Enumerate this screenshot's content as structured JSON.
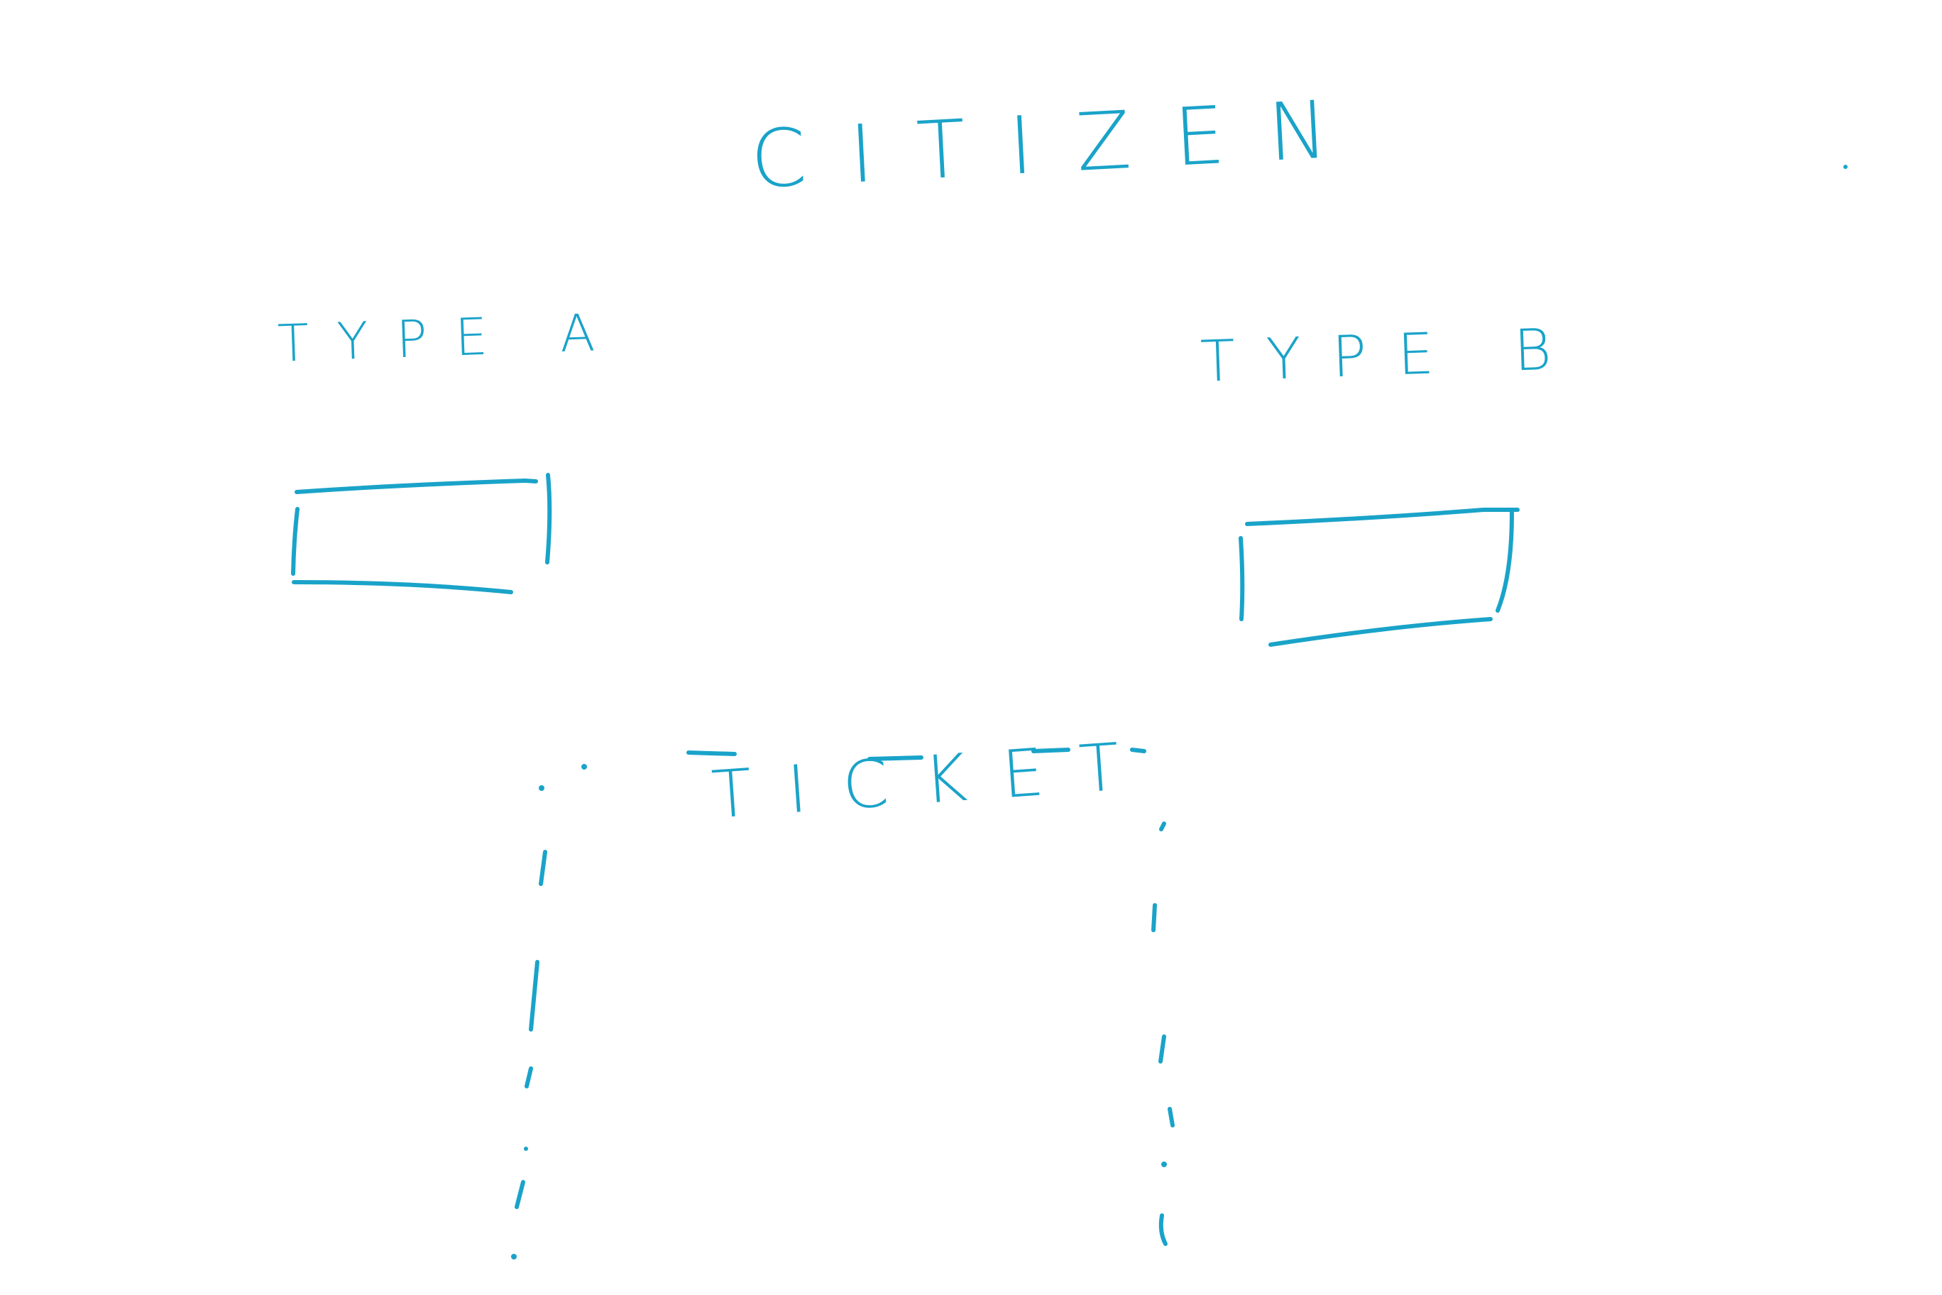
{
  "diagram": {
    "title": "CITIZEN",
    "types": [
      {
        "label": "TYPE A"
      },
      {
        "label": "TYPE B"
      }
    ],
    "relationship_label": "TICKET"
  },
  "colors": {
    "ink": "#1aa3c9",
    "background": "#ffffff"
  }
}
